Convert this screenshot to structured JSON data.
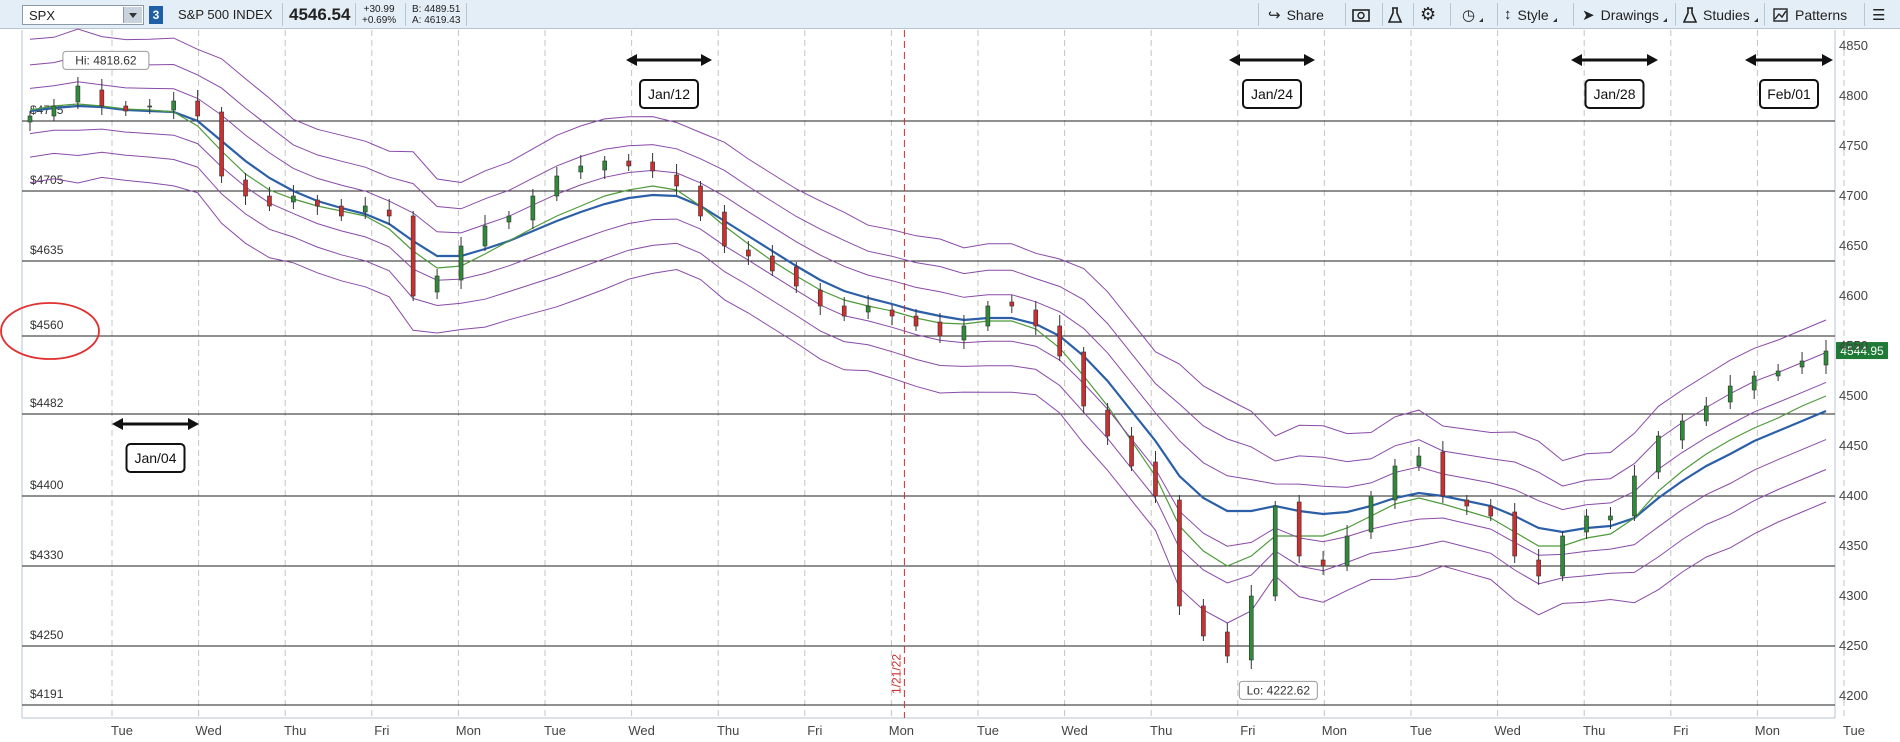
{
  "header": {
    "symbol": "SPX",
    "link_badge": "3",
    "name": "S&P 500 INDEX",
    "last": "4546.54",
    "change": "+30.99",
    "change_pct": "+0.69%",
    "bid": "B: 4489.51",
    "ask": "A: 4619.43"
  },
  "toolbar": {
    "share": "Share",
    "style": "Style",
    "drawings": "Drawings",
    "studies": "Studies",
    "patterns": "Patterns"
  },
  "chart_data": {
    "type": "candlestick",
    "title": "",
    "x_labels": [
      "Tue",
      "Wed",
      "Thu",
      "Fri",
      "Mon",
      "Tue",
      "Wed",
      "Thu",
      "Fri",
      "Mon",
      "Tue",
      "Wed",
      "Thu",
      "Fri",
      "Mon",
      "Tue",
      "Wed",
      "Thu",
      "Fri",
      "Mon",
      "Tue"
    ],
    "y_ticks": [
      4200,
      4250,
      4300,
      4350,
      4400,
      4450,
      4500,
      4550,
      4600,
      4650,
      4700,
      4750,
      4800,
      4850
    ],
    "ylim": [
      4188,
      4862
    ],
    "last_price_tag": "4544.95",
    "high_label": "Hi: 4818.62",
    "low_label": "Lo: 4222.62",
    "high": 4818.62,
    "low": 4222.62,
    "vertical_marker_label": "1/21/22",
    "horizontal_levels": [
      {
        "label": "$4775",
        "value": 4775
      },
      {
        "label": "$4705",
        "value": 4705
      },
      {
        "label": "$4635",
        "value": 4635
      },
      {
        "label": "$4560",
        "value": 4560
      },
      {
        "label": "$4482",
        "value": 4482
      },
      {
        "label": "$4400",
        "value": 4400
      },
      {
        "label": "$4330",
        "value": 4330
      },
      {
        "label": "$4250",
        "value": 4250
      },
      {
        "label": "$4191",
        "value": 4191
      }
    ],
    "circled_level": "$4560",
    "date_annotations": [
      "Jan/04",
      "Jan/12",
      "Jan/24",
      "Jan/28",
      "Feb/01"
    ],
    "price_path": [
      4780,
      4790,
      4810,
      4790,
      4785,
      4790,
      4795,
      4780,
      4720,
      4700,
      4690,
      4700,
      4690,
      4680,
      4690,
      4680,
      4600,
      4620,
      4650,
      4670,
      4680,
      4700,
      4720,
      4730,
      4735,
      4730,
      4725,
      4710,
      4680,
      4650,
      4640,
      4625,
      4610,
      4590,
      4580,
      4590,
      4580,
      4570,
      4560,
      4570,
      4590,
      4590,
      4570,
      4540,
      4490,
      4460,
      4430,
      4400,
      4290,
      4260,
      4240,
      4300,
      4390,
      4340,
      4330,
      4360,
      4400,
      4430,
      4440,
      4400,
      4390,
      4380,
      4340,
      4320,
      4360,
      4380,
      4380,
      4420,
      4460,
      4475,
      4490,
      4510,
      4520,
      4525,
      4535,
      4545
    ],
    "series": [
      {
        "name": "",
        "values": [
          4785,
          4788,
          4790,
          4789,
          4786,
          4785,
          4784,
          4775,
          4755,
          4735,
          4718,
          4705,
          4695,
          4688,
          4682,
          4672,
          4655,
          4640,
          4640,
          4647,
          4655,
          4665,
          4675,
          4684,
          4692,
          4698,
          4701,
          4700,
          4690,
          4675,
          4660,
          4645,
          4630,
          4616,
          4605,
          4598,
          4592,
          4585,
          4580,
          4576,
          4578,
          4578,
          4572,
          4560,
          4540,
          4515,
          4485,
          4455,
          4420,
          4398,
          4385,
          4385,
          4390,
          4385,
          4382,
          4384,
          4390,
          4398,
          4403,
          4400,
          4395,
          4390,
          4380,
          4368,
          4364,
          4368,
          4370,
          4378,
          4398,
          4415,
          4430,
          4442,
          4455,
          4465,
          4475,
          4485
        ]
      },
      {
        "name": "",
        "values": [
          4786,
          4790,
          4792,
          4790,
          4787,
          4786,
          4784,
          4770,
          4745,
          4722,
          4706,
          4697,
          4690,
          4685,
          4680,
          4667,
          4645,
          4628,
          4630,
          4642,
          4655,
          4668,
          4680,
          4690,
          4700,
          4706,
          4710,
          4706,
          4690,
          4670,
          4652,
          4635,
          4620,
          4606,
          4596,
          4590,
          4585,
          4578,
          4573,
          4572,
          4575,
          4575,
          4567,
          4548,
          4520,
          4490,
          4455,
          4420,
          4370,
          4345,
          4330,
          4340,
          4360,
          4360,
          4360,
          4368,
          4380,
          4392,
          4398,
          4392,
          4385,
          4378,
          4364,
          4350,
          4350,
          4358,
          4362,
          4378,
          4405,
          4425,
          4442,
          4456,
          4468,
          4478,
          4490,
          4500
        ]
      }
    ]
  }
}
